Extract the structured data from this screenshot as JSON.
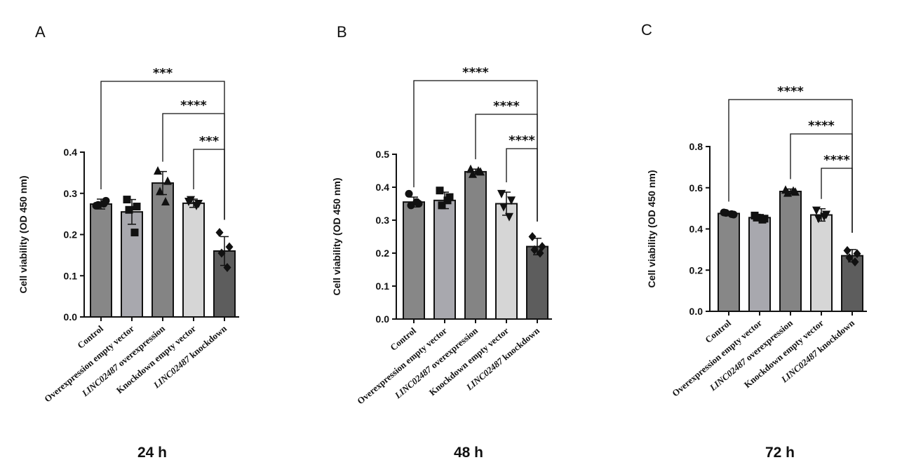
{
  "chart_data": [
    {
      "type": "bar",
      "panel": "A",
      "time_label": "24 h",
      "ylabel": "Cell viability (OD 450 nm)",
      "ylim": [
        0,
        0.4
      ],
      "yticks": [
        "0.0",
        "0.1",
        "0.2",
        "0.3",
        "0.4"
      ],
      "categories": [
        {
          "italic": "",
          "rest": "Control"
        },
        {
          "italic": "",
          "rest": "Overexpression empty vector"
        },
        {
          "italic": "LINC02487",
          "rest": " overexpression"
        },
        {
          "italic": "",
          "rest": "Knockdown empty vector"
        },
        {
          "italic": "LINC02487",
          "rest": " knockdown"
        }
      ],
      "values": [
        0.274,
        0.255,
        0.325,
        0.276,
        0.16
      ],
      "errors": [
        0.012,
        0.03,
        0.028,
        0.01,
        0.035
      ],
      "points": [
        [
          0.27,
          0.282,
          0.272,
          0.275
        ],
        [
          0.285,
          0.268,
          0.26,
          0.205
        ],
        [
          0.355,
          0.33,
          0.305,
          0.28
        ],
        [
          0.28,
          0.275,
          0.284,
          0.27
        ],
        [
          0.205,
          0.17,
          0.155,
          0.12
        ]
      ],
      "comparisons": [
        {
          "from": 0,
          "to": 4,
          "label": "***"
        },
        {
          "from": 2,
          "to": 4,
          "label": "****"
        },
        {
          "from": 3,
          "to": 4,
          "label": "***"
        }
      ]
    },
    {
      "type": "bar",
      "panel": "B",
      "time_label": "48 h",
      "ylabel": "Cell viability (OD 450 nm)",
      "ylim": [
        0,
        0.5
      ],
      "yticks": [
        "0.0",
        "0.1",
        "0.2",
        "0.3",
        "0.4",
        "0.5"
      ],
      "categories": [
        {
          "italic": "",
          "rest": "Control"
        },
        {
          "italic": "",
          "rest": "Overexpression empty vector"
        },
        {
          "italic": "LINC02487",
          "rest": " overexpression"
        },
        {
          "italic": "",
          "rest": "Knockdown empty vector"
        },
        {
          "italic": "LINC02487",
          "rest": " knockdown"
        }
      ],
      "values": [
        0.355,
        0.36,
        0.447,
        0.35,
        0.22
      ],
      "errors": [
        0.015,
        0.025,
        0.008,
        0.035,
        0.025
      ],
      "points": [
        [
          0.38,
          0.35,
          0.345,
          0.355
        ],
        [
          0.39,
          0.37,
          0.345,
          0.36
        ],
        [
          0.455,
          0.447,
          0.44,
          0.45
        ],
        [
          0.38,
          0.36,
          0.34,
          0.31
        ],
        [
          0.25,
          0.22,
          0.21,
          0.2
        ]
      ],
      "comparisons": [
        {
          "from": 0,
          "to": 4,
          "label": "****"
        },
        {
          "from": 2,
          "to": 4,
          "label": "****"
        },
        {
          "from": 3,
          "to": 4,
          "label": "****"
        }
      ]
    },
    {
      "type": "bar",
      "panel": "C",
      "time_label": "72 h",
      "ylabel": "Cell viability (OD 450 nm)",
      "ylim": [
        0,
        0.8
      ],
      "yticks": [
        "0.0",
        "0.2",
        "0.4",
        "0.6",
        "0.8"
      ],
      "categories": [
        {
          "italic": "",
          "rest": "Control"
        },
        {
          "italic": "",
          "rest": "Overexpression empty vector"
        },
        {
          "italic": "LINC02487",
          "rest": " overexpression"
        },
        {
          "italic": "",
          "rest": "Knockdown empty vector"
        },
        {
          "italic": "LINC02487",
          "rest": " knockdown"
        }
      ],
      "values": [
        0.475,
        0.455,
        0.582,
        0.468,
        0.27
      ],
      "errors": [
        0.01,
        0.015,
        0.012,
        0.03,
        0.03
      ],
      "points": [
        [
          0.48,
          0.47,
          0.478,
          0.472
        ],
        [
          0.465,
          0.45,
          0.455,
          0.445
        ],
        [
          0.59,
          0.58,
          0.575,
          0.585
        ],
        [
          0.49,
          0.47,
          0.45,
          0.46
        ],
        [
          0.295,
          0.28,
          0.26,
          0.24
        ]
      ],
      "comparisons": [
        {
          "from": 0,
          "to": 4,
          "label": "****"
        },
        {
          "from": 2,
          "to": 4,
          "label": "****"
        },
        {
          "from": 3,
          "to": 4,
          "label": "****"
        }
      ]
    }
  ],
  "colors": {
    "bars": [
      "#878787",
      "#a8a8ae",
      "#848484",
      "#d6d6d6",
      "#5d5d5d"
    ],
    "ink": "#111111"
  },
  "markers": [
    "circle",
    "square",
    "triangle",
    "inverted-triangle",
    "diamond"
  ]
}
